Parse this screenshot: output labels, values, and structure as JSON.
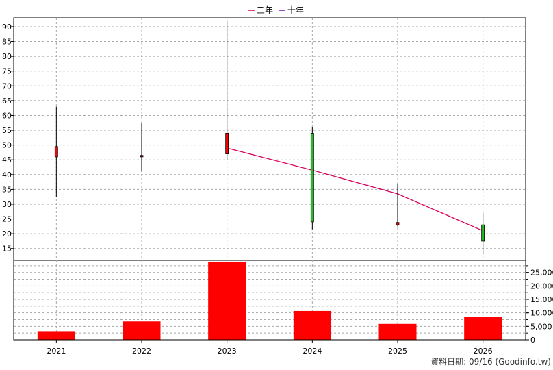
{
  "chart_data": [
    {
      "type": "candlestick",
      "categories": [
        "2021",
        "2022",
        "2023",
        "2024",
        "2025",
        "2026"
      ],
      "ohlc": [
        {
          "open": 46.0,
          "high": 63.0,
          "low": 32.5,
          "close": 49.5
        },
        {
          "open": 46.0,
          "high": 57.5,
          "low": 41.0,
          "close": 46.5
        },
        {
          "open": 47.0,
          "high": 92.0,
          "low": 45.0,
          "close": 54.0
        },
        {
          "open": 54.0,
          "high": 56.0,
          "low": 21.5,
          "close": 24.0
        },
        {
          "open": 23.0,
          "high": 37.0,
          "low": 22.5,
          "close": 23.8
        },
        {
          "open": 23.0,
          "high": 27.0,
          "low": 13.0,
          "close": 17.5
        }
      ],
      "series": [
        {
          "name": "三年",
          "color": "#d6005a",
          "values": [
            null,
            null,
            49.0,
            41.5,
            33.5,
            21.0
          ]
        },
        {
          "name": "十年",
          "color": "#6a0dad",
          "values": [
            null,
            null,
            null,
            null,
            null,
            null
          ]
        }
      ],
      "up_color": "#ff0000",
      "down_color": "#22bb22",
      "ylim": [
        11,
        93
      ],
      "yticks": [
        15,
        20,
        25,
        30,
        35,
        40,
        45,
        50,
        55,
        60,
        65,
        70,
        75,
        80,
        85,
        90
      ],
      "grid": true,
      "legend": "top-center"
    },
    {
      "type": "bar",
      "categories": [
        "2021",
        "2022",
        "2023",
        "2024",
        "2025",
        "2026"
      ],
      "values": [
        3200,
        6800,
        29000,
        10700,
        5900,
        8500
      ],
      "color": "#ff0000",
      "ylim": [
        0,
        29500
      ],
      "yticks": [
        0,
        5000,
        10000,
        15000,
        20000,
        25000
      ],
      "ytick_labels": [
        "0",
        "5,000",
        "10,000",
        "15,000",
        "20,000",
        "25,000"
      ],
      "grid": true
    }
  ],
  "legend": [
    {
      "label": "三年",
      "color": "#d6005a"
    },
    {
      "label": "十年",
      "color": "#6a0dad"
    }
  ],
  "source_note": "資料日期: 09/16  (Goodinfo.tw)"
}
